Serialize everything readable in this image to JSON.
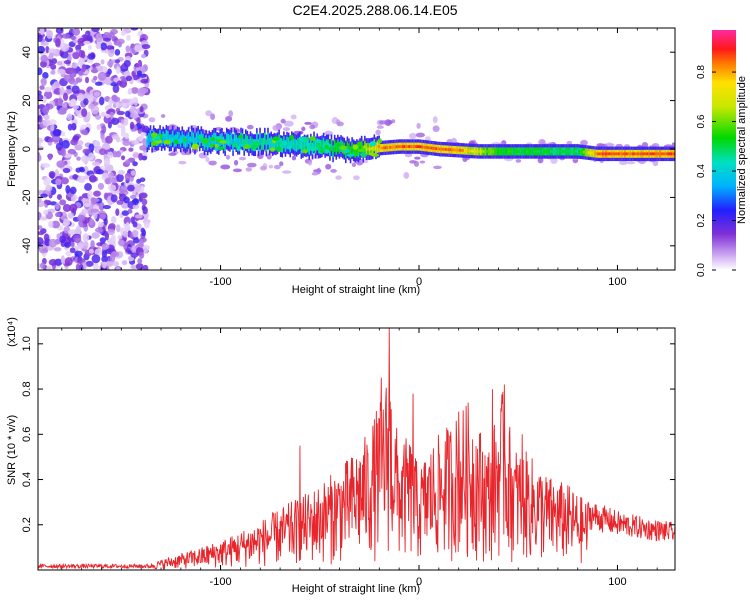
{
  "figure_title": "C2E4.2025.288.06.14.E05",
  "colorbar": {
    "label": "Normalized spectral amplitude",
    "ticks": [
      "0.0",
      "0.2",
      "0.4",
      "0.6",
      "0.8"
    ],
    "range": [
      0,
      0.97
    ]
  },
  "chart_data": [
    {
      "type": "heatmap",
      "title": "C2E4.2025.288.06.14.E05",
      "xlabel": "Height of straight line (km)",
      "ylabel": "Frequency (Hz)",
      "xlim": [
        -192,
        129
      ],
      "ylim": [
        -50,
        50
      ],
      "xticks": [
        -100,
        0,
        100
      ],
      "xtick_labels": [
        "-100",
        "0",
        "100"
      ],
      "yticks": [
        -40,
        -20,
        0,
        20,
        40
      ],
      "ytick_labels": [
        "-40",
        "-20",
        "0",
        "20",
        "40"
      ],
      "colorscale": "rainbow (purple → blue → cyan → green → yellow → red → magenta)",
      "ridge": [
        {
          "x": -136,
          "f": 4
        },
        {
          "x": -120,
          "f": 4
        },
        {
          "x": -100,
          "f": 3
        },
        {
          "x": -80,
          "f": 3
        },
        {
          "x": -60,
          "f": 2
        },
        {
          "x": -40,
          "f": 0
        },
        {
          "x": -25,
          "f": 0
        },
        {
          "x": -10,
          "f": 1
        },
        {
          "x": 0,
          "f": 1
        },
        {
          "x": 10,
          "f": 0
        },
        {
          "x": 30,
          "f": -1
        },
        {
          "x": 50,
          "f": -1
        },
        {
          "x": 80,
          "f": -1
        },
        {
          "x": 90,
          "f": -2
        },
        {
          "x": 110,
          "f": -2
        },
        {
          "x": 129,
          "f": -2
        }
      ],
      "ridge_amplitude": [
        {
          "x": -136,
          "a": 0.35
        },
        {
          "x": -100,
          "a": 0.4
        },
        {
          "x": -60,
          "a": 0.45
        },
        {
          "x": -30,
          "a": 0.55
        },
        {
          "x": -20,
          "a": 0.85
        },
        {
          "x": 0,
          "a": 0.9
        },
        {
          "x": 20,
          "a": 0.85
        },
        {
          "x": 40,
          "a": 0.55
        },
        {
          "x": 80,
          "a": 0.5
        },
        {
          "x": 90,
          "a": 0.9
        },
        {
          "x": 129,
          "a": 0.9
        }
      ],
      "noise_region_x": [
        -192,
        -137
      ]
    },
    {
      "type": "line",
      "xlabel": "Height of straight line (km)",
      "ylabel": "SNR (10 * v/v)",
      "yscale_label": "(x10⁴)",
      "xlim": [
        -192,
        129
      ],
      "ylim": [
        0,
        1.07
      ],
      "xticks": [
        -100,
        0,
        100
      ],
      "xtick_labels": [
        "-100",
        "0",
        "100"
      ],
      "yticks": [
        0.2,
        0.4,
        0.6,
        0.8,
        1.0
      ],
      "ytick_labels": [
        "0.2",
        "0.4",
        "0.6",
        "0.8",
        "1.0"
      ],
      "color": "#e8252b",
      "series": [
        {
          "name": "SNR",
          "x": [
            -192,
            -170,
            -150,
            -135,
            -125,
            -110,
            -95,
            -80,
            -65,
            -55,
            -45,
            -35,
            -25,
            -20,
            -15,
            -10,
            -5,
            0,
            5,
            15,
            25,
            35,
            42,
            48,
            55,
            65,
            75,
            85,
            100,
            115,
            129
          ],
          "envelope": [
            0.015,
            0.015,
            0.02,
            0.03,
            0.06,
            0.1,
            0.15,
            0.22,
            0.3,
            0.35,
            0.42,
            0.5,
            0.62,
            0.75,
            0.9,
            0.55,
            0.6,
            0.45,
            0.55,
            0.65,
            0.75,
            0.55,
            0.8,
            0.55,
            0.52,
            0.42,
            0.38,
            0.3,
            0.25,
            0.22,
            0.2
          ],
          "peaks": [
            {
              "x": -15,
              "y": 1.07
            },
            {
              "x": -19,
              "y": 0.85
            },
            {
              "x": -3,
              "y": 0.78
            },
            {
              "x": 37,
              "y": 0.8
            },
            {
              "x": 43,
              "y": 0.82
            },
            {
              "x": 52,
              "y": 0.6
            },
            {
              "x": -60,
              "y": 0.55
            },
            {
              "x": 20,
              "y": 0.7
            }
          ]
        }
      ]
    }
  ]
}
